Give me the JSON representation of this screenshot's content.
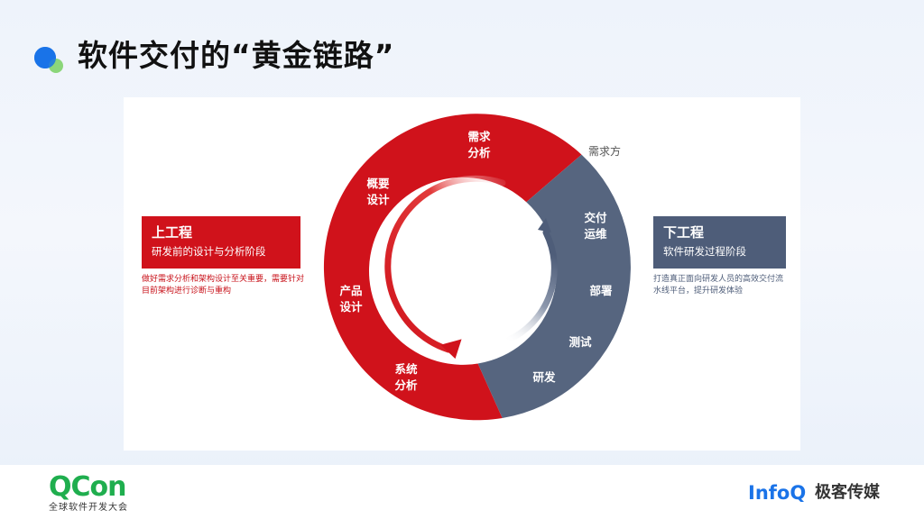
{
  "slide": {
    "title": "软件交付的“黄金链路”"
  },
  "diagram": {
    "outer_label": "需求方",
    "upstream_stages": [
      {
        "line1": "需求",
        "line2": "分析"
      },
      {
        "line1": "概要",
        "line2": "设计"
      },
      {
        "line1": "产品",
        "line2": "设计"
      },
      {
        "line1": "系统",
        "line2": "分析"
      }
    ],
    "downstream_stages": [
      {
        "line1": "交付",
        "line2": "运维"
      },
      {
        "line1": "部署",
        "line2": ""
      },
      {
        "line1": "测试",
        "line2": ""
      },
      {
        "line1": "研发",
        "line2": ""
      }
    ]
  },
  "left_box": {
    "title": "上工程",
    "subtitle": "研发前的设计与分析阶段",
    "description": "做好需求分析和架构设计至关重要，需要针对目前架构进行诊断与重构"
  },
  "right_box": {
    "title": "下工程",
    "subtitle": "软件研发过程阶段",
    "description": "打造真正面向研发人员的高效交付流水线平台，提升研发体验"
  },
  "footer": {
    "qcon_logo": "QCon",
    "qcon_sub": "全球软件开发大会",
    "infoq_logo": "InfoQ",
    "infoq_cn": "极客传媒"
  },
  "colors": {
    "red": "#d0121b",
    "slate": "#4e5d79",
    "accent_blue": "#1a73e8",
    "green": "#1fae4e"
  }
}
